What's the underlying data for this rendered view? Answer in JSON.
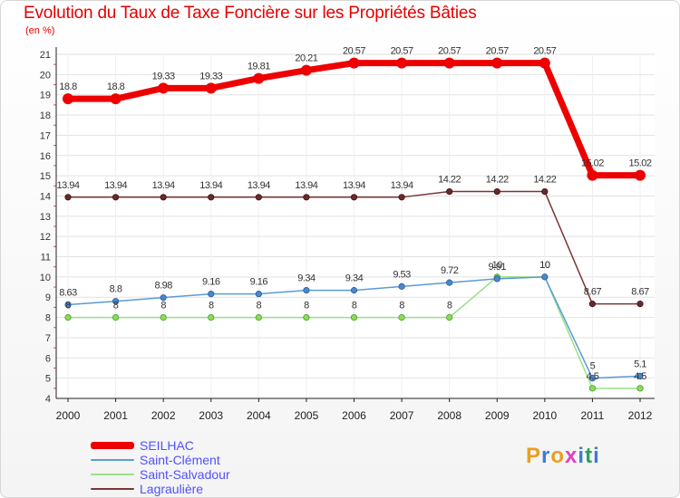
{
  "title": "Evolution du Taux de Taxe Foncière sur les Propriétés Bâties",
  "subtitle": "(en %)",
  "logo": {
    "text": "Proxiti",
    "colors": [
      "#e8a020",
      "#3d7bd8",
      "#e8a020",
      "#e040c0",
      "#3d7bd8",
      "#2aa05a",
      "#3d7bd8"
    ]
  },
  "chart_data": {
    "type": "line",
    "title": "Evolution du Taux de Taxe Foncière sur les Propriétés Bâties",
    "ylabel": "(en %)",
    "categories": [
      "2000",
      "2001",
      "2002",
      "2003",
      "2004",
      "2005",
      "2006",
      "2007",
      "2008",
      "2009",
      "2010",
      "2011",
      "2012"
    ],
    "yticks": [
      4,
      5,
      6,
      7,
      8,
      9,
      10,
      11,
      12,
      13,
      14,
      15,
      16,
      17,
      18,
      19,
      20,
      21
    ],
    "ylim": [
      4,
      21
    ],
    "grid": true,
    "legend_position": "bottom-left",
    "series": [
      {
        "name": "SEILHAC",
        "color": "#ee0000",
        "values": [
          18.8,
          18.8,
          19.33,
          19.33,
          19.81,
          20.21,
          20.57,
          20.57,
          20.57,
          20.57,
          20.57,
          15.02,
          15.02
        ],
        "labels": [
          "18.8",
          "18.8",
          "19.33",
          "19.33",
          "19.81",
          "20.21",
          "20.57",
          "20.57",
          "20.57",
          "20.57",
          "20.57",
          "15.02",
          "15.02"
        ]
      },
      {
        "name": "Saint-Clément",
        "color": "#5b9bd5",
        "values": [
          8.63,
          8.8,
          8.98,
          9.16,
          9.16,
          9.34,
          9.34,
          9.53,
          9.72,
          9.91,
          10,
          5,
          5.1
        ],
        "labels": [
          "8.63",
          "8.8",
          "8.98",
          "9.16",
          "9.16",
          "9.34",
          "9.34",
          "9.53",
          "9.72",
          "9.91",
          "10",
          "5",
          "5.1"
        ]
      },
      {
        "name": "Saint-Salvadour",
        "color": "#99e08a",
        "values": [
          8,
          8,
          8,
          8,
          8,
          8,
          8,
          8,
          8,
          10,
          10,
          4.5,
          4.5
        ],
        "labels": [
          "8",
          "8",
          "8",
          "8",
          "8",
          "8",
          "8",
          "8",
          "8",
          "10",
          "10",
          "4.5",
          "4.5"
        ]
      },
      {
        "name": "Lagraulière",
        "color": "#7a3535",
        "values": [
          13.94,
          13.94,
          13.94,
          13.94,
          13.94,
          13.94,
          13.94,
          13.94,
          14.22,
          14.22,
          14.22,
          8.67,
          8.67
        ],
        "labels": [
          "13.94",
          "13.94",
          "13.94",
          "13.94",
          "13.94",
          "13.94",
          "13.94",
          "13.94",
          "14.22",
          "14.22",
          "14.22",
          "8.67",
          "8.67"
        ]
      }
    ]
  }
}
